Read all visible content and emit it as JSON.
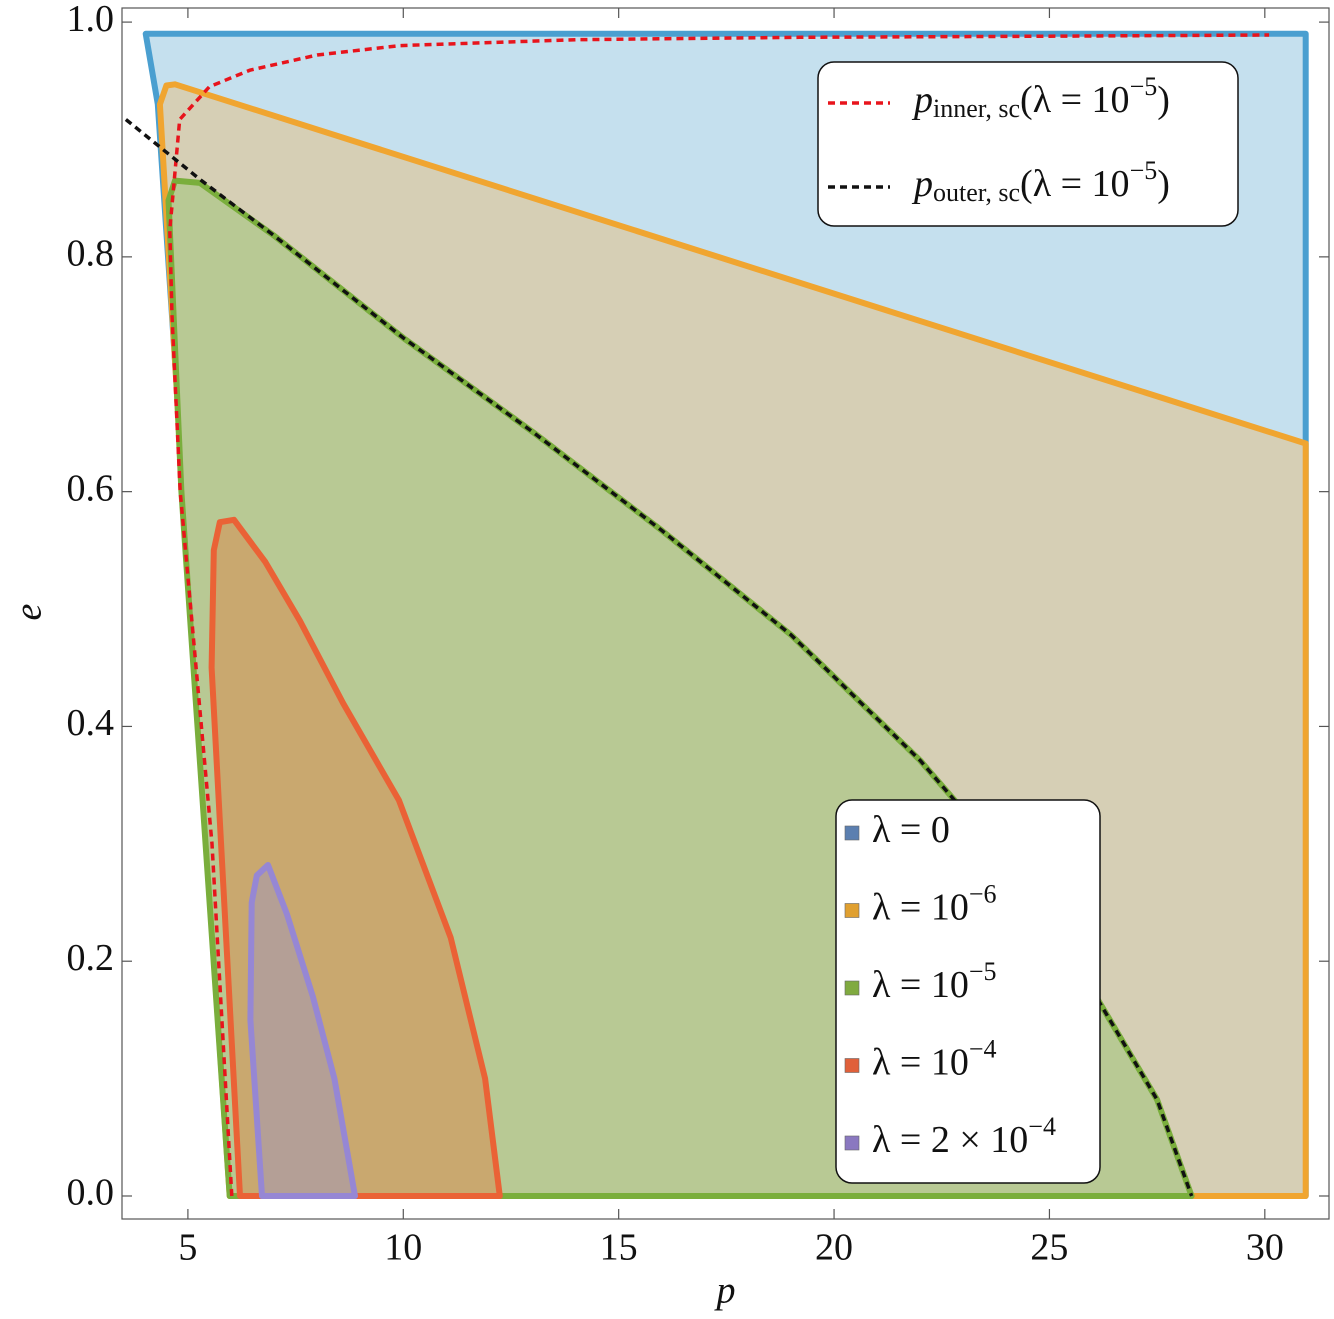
{
  "chart_data": {
    "type": "region",
    "x_label": "p",
    "y_label": "e",
    "xlim": [
      3.47,
      31.49
    ],
    "ylim": [
      -0.0196,
      1.012
    ],
    "xticks": [
      5,
      10,
      15,
      20,
      25,
      30
    ],
    "yticks": [
      {
        "value": 0,
        "label": "0.0"
      },
      {
        "value": 0.2,
        "label": "0.2"
      },
      {
        "value": 0.4,
        "label": "0.4"
      },
      {
        "value": 0.6,
        "label": "0.6"
      },
      {
        "value": 0.8,
        "label": "0.8"
      },
      {
        "value": 1,
        "label": "1.0"
      }
    ],
    "series": [
      {
        "type": "region",
        "name": [
          "λ = 0"
        ],
        "name_format": [
          "normal"
        ],
        "color": "#4a9fd0",
        "fill": "#c5e0ee",
        "swatch": "#5b7fb0",
        "x": [
          4.02,
          30.95,
          30.95,
          6.0,
          4.3
        ],
        "values": [
          0.99,
          0.99,
          0.0,
          0.0,
          0.93
        ]
      },
      {
        "type": "region",
        "name": [
          "λ = 10",
          "−6"
        ],
        "name_format": [
          "normal",
          "sup"
        ],
        "color": "#f0a530",
        "fill": "#d6cfb5",
        "swatch": "#e0a030",
        "x": [
          4.35,
          4.5,
          4.7,
          30.95,
          30.95,
          5.97,
          4.88
        ],
        "values": [
          0.93,
          0.946,
          0.947,
          0.641,
          0.0,
          0.0,
          0.6
        ]
      },
      {
        "type": "region",
        "name": [
          "λ = 10",
          "−5"
        ],
        "name_format": [
          "normal",
          "sup"
        ],
        "color": "#7aae3c",
        "fill": "#b8c994",
        "swatch": "#80aa40",
        "x": [
          5.97,
          4.85,
          4.55,
          4.7,
          5.28,
          7,
          10,
          13,
          16,
          19,
          22,
          24,
          26,
          27.5,
          28.3
        ],
        "values": [
          0.0,
          0.6,
          0.848,
          0.865,
          0.863,
          0.818,
          0.731,
          0.651,
          0.567,
          0.478,
          0.371,
          0.286,
          0.175,
          0.082,
          0.0
        ]
      },
      {
        "type": "region",
        "name": [
          "λ = 10",
          "−4"
        ],
        "name_format": [
          "normal",
          "sup"
        ],
        "color": "#ea6236",
        "fill": "#c9a86f",
        "swatch": "#e0603a",
        "x": [
          6.21,
          5.55,
          5.6,
          5.74,
          6.07,
          6.8,
          7.6,
          8.6,
          9.9,
          11.1,
          11.9,
          12.24
        ],
        "values": [
          0.0,
          0.45,
          0.55,
          0.574,
          0.576,
          0.54,
          0.49,
          0.42,
          0.337,
          0.22,
          0.1,
          0.0
        ]
      },
      {
        "type": "region",
        "name": [
          "λ = 2 × 10",
          "−4"
        ],
        "name_format": [
          "normal",
          "sup"
        ],
        "color": "#9687d4",
        "fill": "#b49f96",
        "swatch": "#8a78c0",
        "x": [
          6.72,
          6.45,
          6.48,
          6.6,
          6.86,
          7.3,
          7.9,
          8.4,
          8.88
        ],
        "values": [
          0.0,
          0.15,
          0.25,
          0.273,
          0.282,
          0.24,
          0.17,
          0.1,
          0.0
        ]
      },
      {
        "type": "line",
        "dashed": true,
        "name": [
          "p",
          "inner, sc",
          "(λ = 10",
          "−5",
          ")"
        ],
        "name_format": [
          "italic",
          "sub",
          "normal",
          "sup",
          "normal"
        ],
        "color": "#e8141c",
        "x": [
          6.02,
          5.56,
          4.82,
          4.63,
          4.58,
          4.81,
          5.5,
          6.44,
          8,
          9.92,
          14,
          19.2,
          25,
          30.1
        ],
        "values": [
          0.0,
          0.3,
          0.6,
          0.75,
          0.823,
          0.917,
          0.945,
          0.959,
          0.972,
          0.98,
          0.985,
          0.987,
          0.988,
          0.989
        ]
      },
      {
        "type": "line",
        "dashed": true,
        "name": [
          "p",
          "outer, sc",
          "(λ = 10",
          "−5",
          ")"
        ],
        "name_format": [
          "italic",
          "sub",
          "normal",
          "sup",
          "normal"
        ],
        "color": "#111111",
        "x": [
          3.56,
          5.28,
          7,
          10,
          13,
          16,
          19,
          22,
          24,
          26,
          27.5,
          28.3
        ],
        "values": [
          0.917,
          0.866,
          0.818,
          0.731,
          0.651,
          0.567,
          0.478,
          0.371,
          0.286,
          0.175,
          0.082,
          0.0
        ]
      }
    ]
  }
}
